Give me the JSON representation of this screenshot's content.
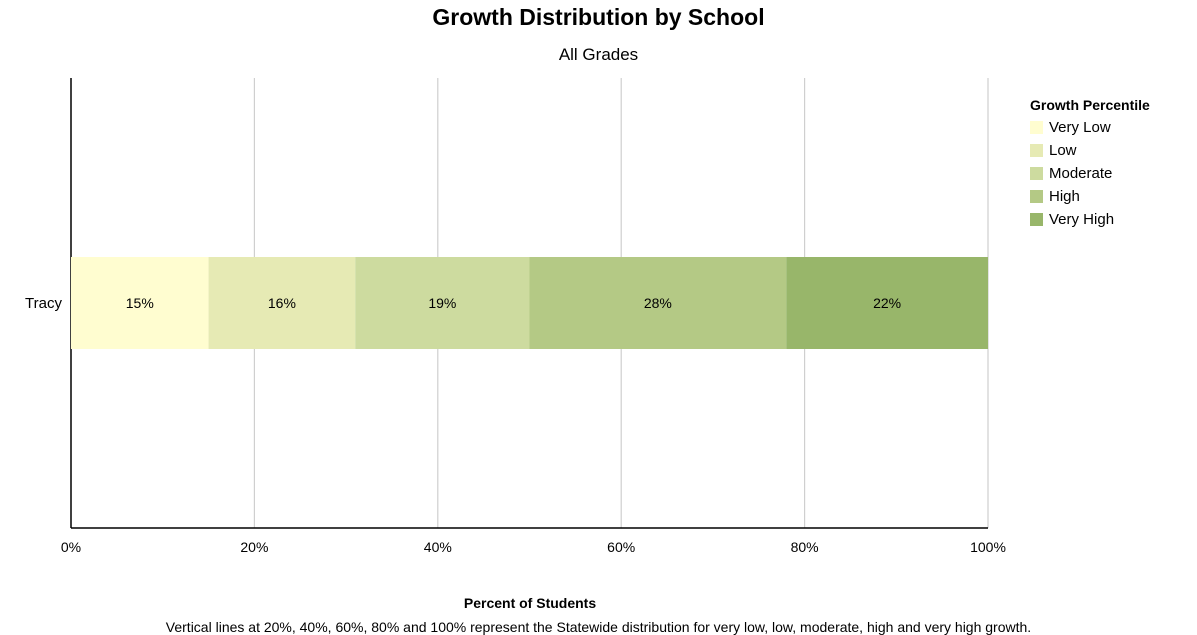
{
  "chart_data": {
    "type": "bar",
    "orientation": "horizontal",
    "stacked": true,
    "title": "Growth Distribution by School",
    "subtitle": "All Grades",
    "xlabel": "Percent of Students",
    "ylabel": "",
    "xlim": [
      0,
      100
    ],
    "x_ticks": [
      "0%",
      "20%",
      "40%",
      "60%",
      "80%",
      "100%"
    ],
    "grid": true,
    "legend_title": "Growth Percentile",
    "legend_position": "top-right",
    "categories": [
      "Tracy"
    ],
    "series": [
      {
        "name": "Very Low",
        "values": [
          15
        ],
        "label": "15%",
        "color": "#fffdd0"
      },
      {
        "name": "Low",
        "values": [
          16
        ],
        "label": "16%",
        "color": "#e6eab4"
      },
      {
        "name": "Moderate",
        "values": [
          19
        ],
        "label": "19%",
        "color": "#cddb9f"
      },
      {
        "name": "High",
        "values": [
          28
        ],
        "label": "28%",
        "color": "#b4c985"
      },
      {
        "name": "Very High",
        "values": [
          22
        ],
        "label": "22%",
        "color": "#98b66a"
      }
    ],
    "note": "Vertical lines at 20%, 40%, 60%, 80% and 100% represent the Statewide distribution for very low, low, moderate, high and very high growth."
  }
}
